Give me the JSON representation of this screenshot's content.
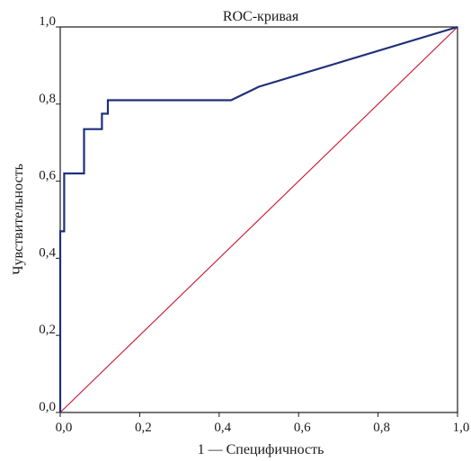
{
  "chart_data": {
    "type": "line",
    "title": "ROC-кривая",
    "xlabel": "1 — Специфичность",
    "ylabel": "Чувствительность",
    "xlim": [
      0,
      1
    ],
    "ylim": [
      0,
      1
    ],
    "x_ticks": [
      "0,0",
      "0,2",
      "0,4",
      "0,6",
      "0,8",
      "1,0"
    ],
    "y_ticks": [
      "0,0",
      "0,2",
      "0,4",
      "0,6",
      "0,8",
      "1,0"
    ],
    "grid": false,
    "series": [
      {
        "color": "#1f2f7a",
        "points": [
          [
            0.0,
            0.0
          ],
          [
            0.0,
            0.47
          ],
          [
            0.01,
            0.47
          ],
          [
            0.01,
            0.62
          ],
          [
            0.06,
            0.62
          ],
          [
            0.06,
            0.735
          ],
          [
            0.105,
            0.735
          ],
          [
            0.105,
            0.775
          ],
          [
            0.12,
            0.775
          ],
          [
            0.12,
            0.81
          ],
          [
            0.43,
            0.81
          ],
          [
            0.5,
            0.845
          ],
          [
            1.0,
            1.0
          ]
        ]
      },
      {
        "color": "#c8102e",
        "points": [
          [
            0.0,
            0.0
          ],
          [
            1.0,
            1.0
          ]
        ]
      }
    ]
  }
}
